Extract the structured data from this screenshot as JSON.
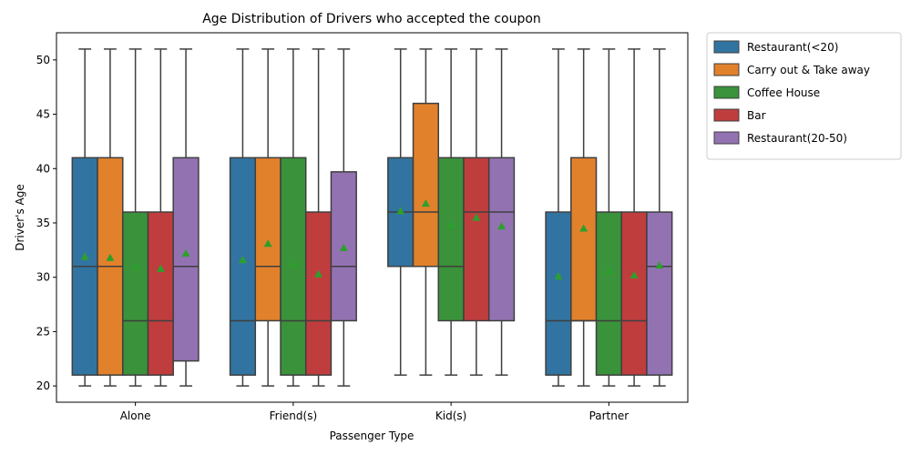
{
  "chart_data": {
    "type": "box",
    "title": "Age Distribution of Drivers who accepted the coupon",
    "xlabel": "Passenger Type",
    "ylabel": "Driver's Age",
    "ylim": [
      18.5,
      52.5
    ],
    "yticks": [
      20,
      25,
      30,
      35,
      40,
      45,
      50
    ],
    "categories": [
      "Alone",
      "Friend(s)",
      "Kid(s)",
      "Partner"
    ],
    "legend_position": "outside-top-right",
    "mean_color": "#2ca02c",
    "series": [
      {
        "name": "Restaurant(<20)",
        "color": "#3274a1",
        "boxes": [
          {
            "whislo": 20,
            "q1": 21,
            "med": 31,
            "q3": 41,
            "whishi": 51,
            "mean": 31.9
          },
          {
            "whislo": 20,
            "q1": 21,
            "med": 26,
            "q3": 41,
            "whishi": 51,
            "mean": 31.6
          },
          {
            "whislo": 21,
            "q1": 31,
            "med": 36,
            "q3": 41,
            "whishi": 51,
            "mean": 36.1
          },
          {
            "whislo": 20,
            "q1": 21,
            "med": 26,
            "q3": 36,
            "whishi": 51,
            "mean": 30.1
          }
        ]
      },
      {
        "name": "Carry out & Take away",
        "color": "#e1812c",
        "boxes": [
          {
            "whislo": 20,
            "q1": 21,
            "med": 31,
            "q3": 41,
            "whishi": 51,
            "mean": 31.8
          },
          {
            "whislo": 20,
            "q1": 26,
            "med": 31,
            "q3": 41,
            "whishi": 51,
            "mean": 33.1
          },
          {
            "whislo": 21,
            "q1": 31,
            "med": 36,
            "q3": 46,
            "whishi": 51,
            "mean": 36.8
          },
          {
            "whislo": 20,
            "q1": 26,
            "med": 26,
            "q3": 41,
            "whishi": 51,
            "mean": 34.5
          }
        ]
      },
      {
        "name": "Coffee House",
        "color": "#3a923a",
        "boxes": [
          {
            "whislo": 20,
            "q1": 21,
            "med": 26,
            "q3": 36,
            "whishi": 51,
            "mean": 31.0
          },
          {
            "whislo": 20,
            "q1": 21,
            "med": 26,
            "q3": 41,
            "whishi": 51,
            "mean": 31.2
          },
          {
            "whislo": 21,
            "q1": 26,
            "med": 31,
            "q3": 41,
            "whishi": 51,
            "mean": 34.8
          },
          {
            "whislo": 20,
            "q1": 21,
            "med": 26,
            "q3": 36,
            "whishi": 51,
            "mean": 30.6
          }
        ]
      },
      {
        "name": "Bar",
        "color": "#c03d3e",
        "boxes": [
          {
            "whislo": 20,
            "q1": 21,
            "med": 26,
            "q3": 36,
            "whishi": 51,
            "mean": 30.8
          },
          {
            "whislo": 20,
            "q1": 21,
            "med": 26,
            "q3": 36,
            "whishi": 51,
            "mean": 30.3
          },
          {
            "whislo": 21,
            "q1": 26,
            "med": 36,
            "q3": 41,
            "whishi": 51,
            "mean": 35.5
          },
          {
            "whislo": 20,
            "q1": 21,
            "med": 26,
            "q3": 36,
            "whishi": 51,
            "mean": 30.2
          }
        ]
      },
      {
        "name": "Restaurant(20-50)",
        "color": "#9372b2",
        "boxes": [
          {
            "whislo": 20,
            "q1": 22.3,
            "med": 31,
            "q3": 41,
            "whishi": 51,
            "mean": 32.2
          },
          {
            "whislo": 20,
            "q1": 26,
            "med": 31,
            "q3": 39.7,
            "whishi": 51,
            "mean": 32.7
          },
          {
            "whislo": 21,
            "q1": 26,
            "med": 36,
            "q3": 41,
            "whishi": 51,
            "mean": 34.7
          },
          {
            "whislo": 20,
            "q1": 21,
            "med": 31,
            "q3": 36,
            "whishi": 51,
            "mean": 31.1
          }
        ]
      }
    ]
  }
}
